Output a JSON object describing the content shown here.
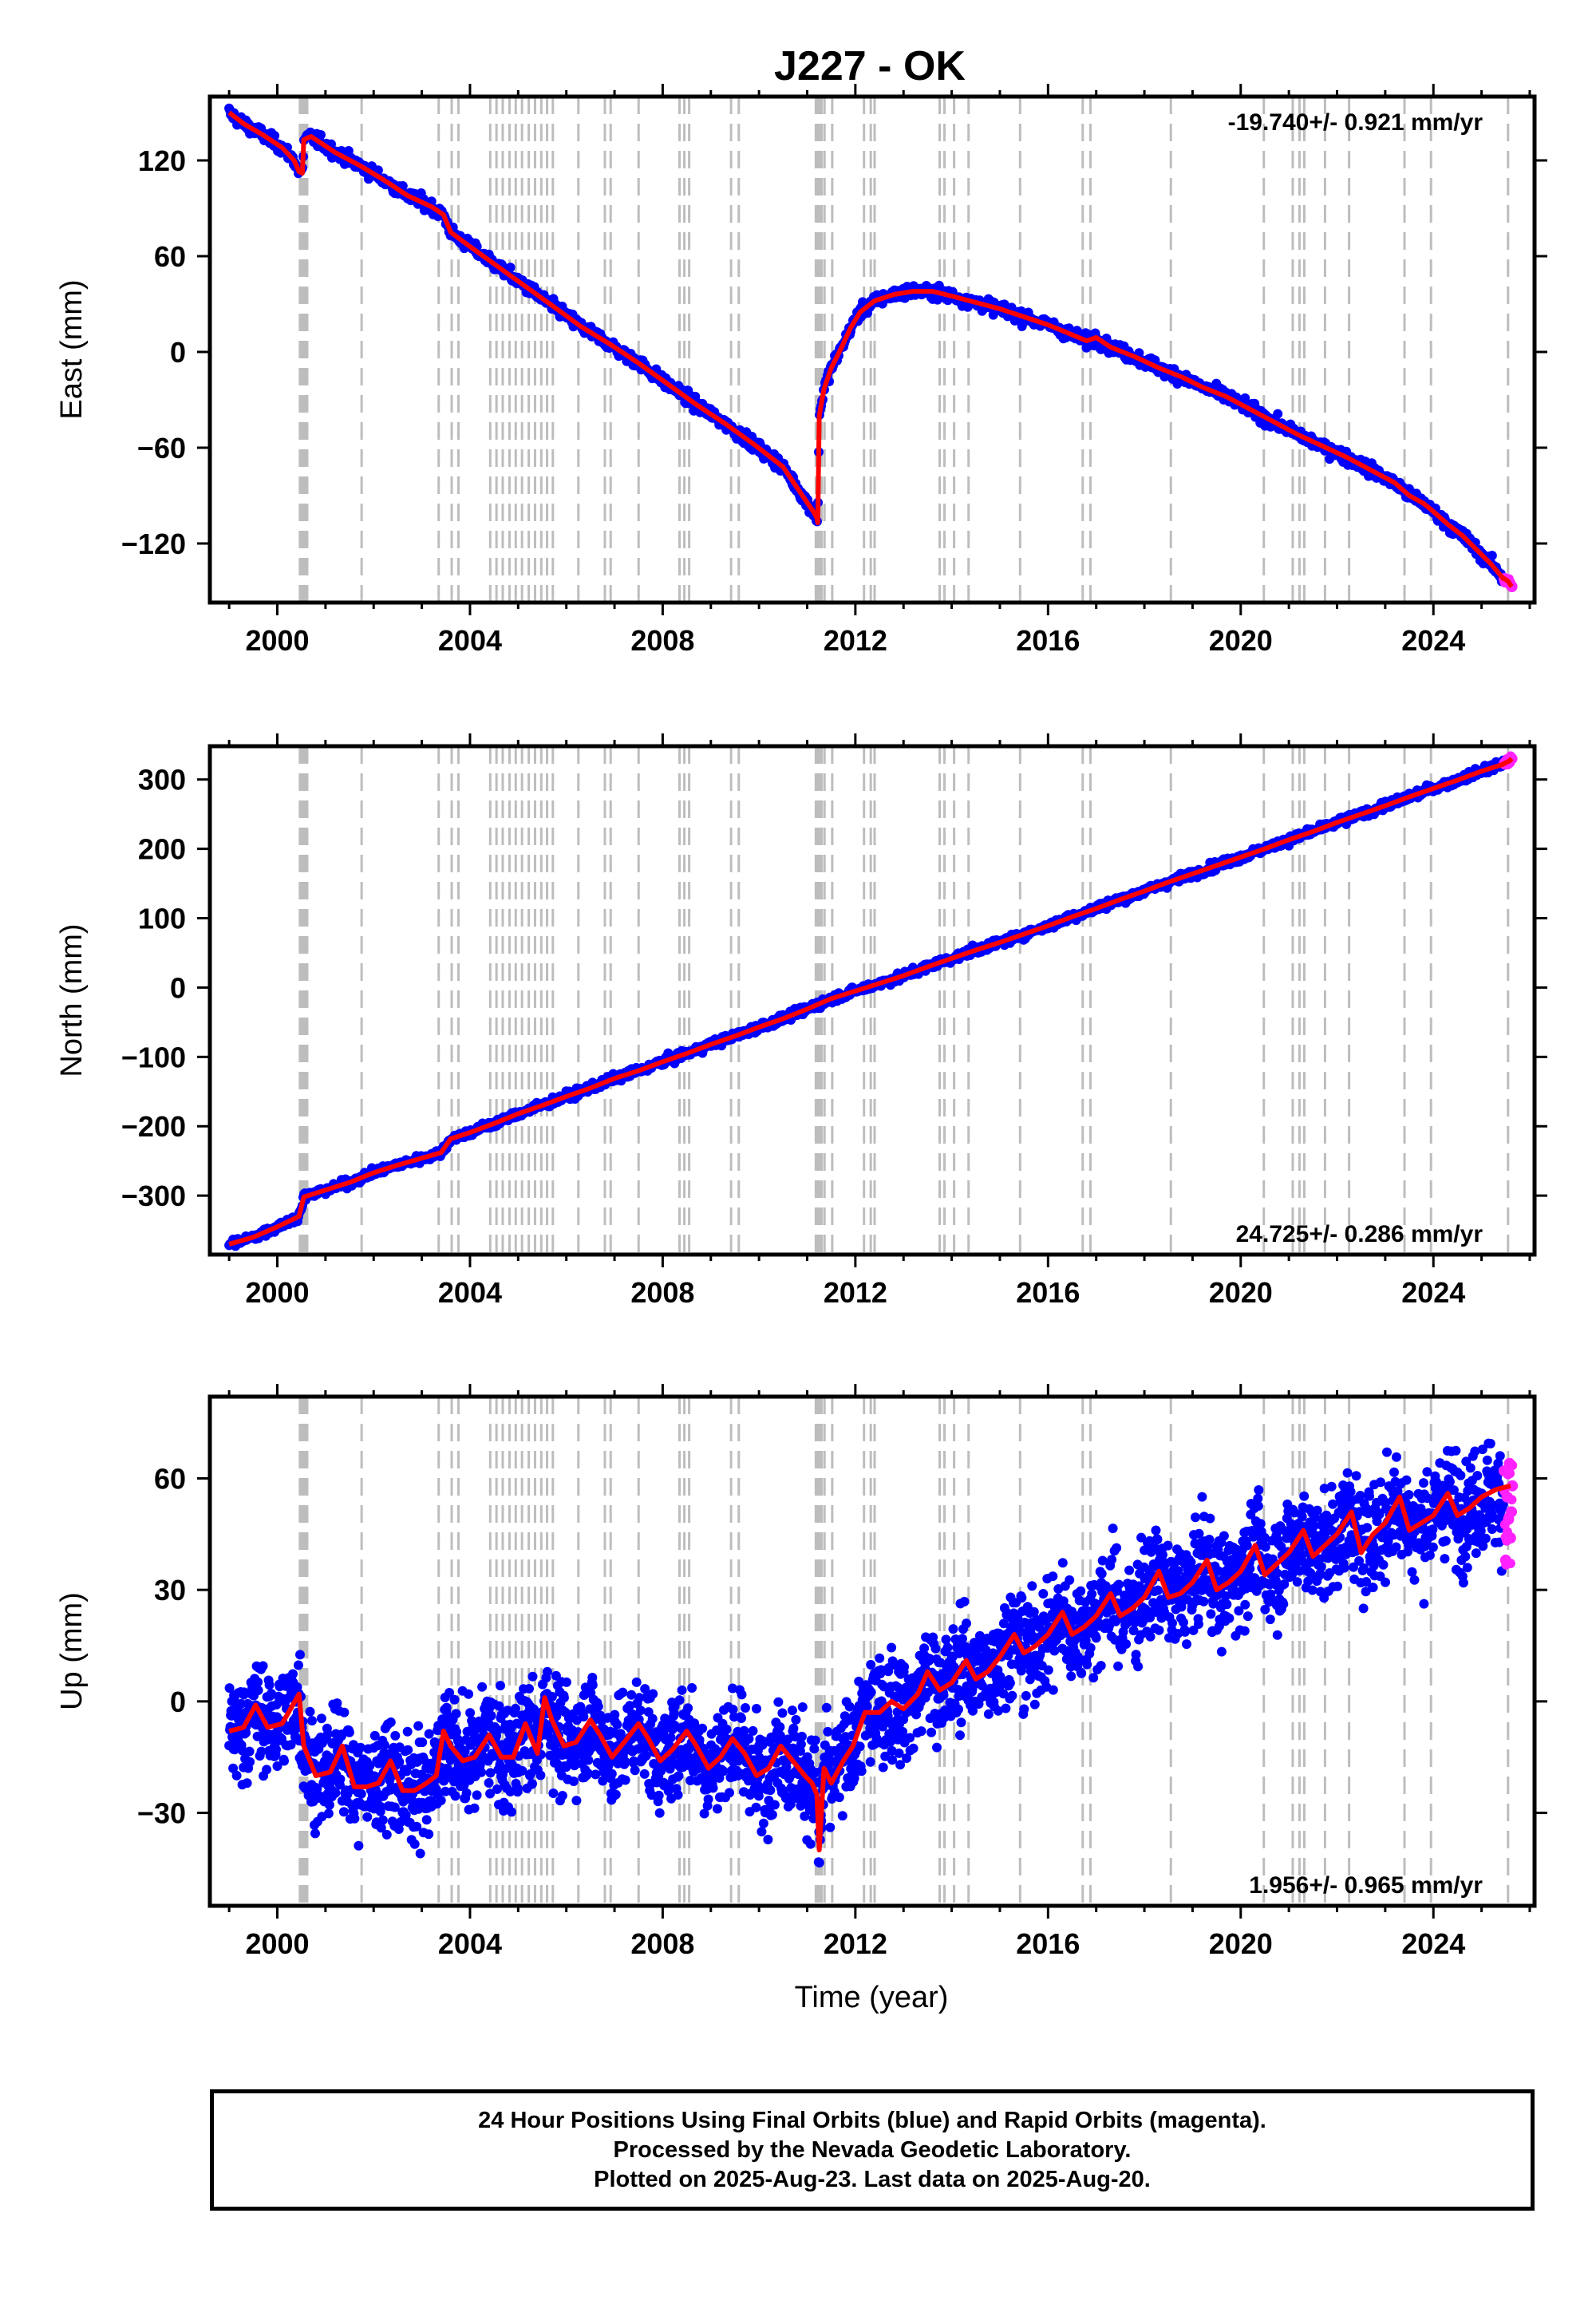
{
  "title": "J227 - OK",
  "xlabel": "Time (year)",
  "footer": {
    "line1": "24 Hour Positions Using Final Orbits (blue) and Rapid Orbits (magenta).",
    "line2": "Processed by the Nevada Geodetic Laboratory.",
    "line3": "Plotted on 2025-Aug-23. Last data on 2025-Aug-20."
  },
  "colors": {
    "final_orbits": "#0000ff",
    "rapid_orbits": "#ff22ff",
    "model": "#ff0000",
    "events": "#bdbdbd"
  },
  "chart_data": [
    {
      "type": "scatter",
      "component": "east",
      "ylabel": "East (mm)",
      "rate": "-19.740+/- 0.921 mm/yr",
      "rate_position": "top-right",
      "xlim": [
        1998.6,
        2026.1
      ],
      "ylim": [
        -157,
        160
      ],
      "x_ticks": [
        2000,
        2004,
        2008,
        2012,
        2016,
        2020,
        2024
      ],
      "y_ticks": [
        120,
        60,
        0,
        -60,
        -120
      ],
      "grid": false,
      "scatter_noise_mm": 2.0,
      "series": [
        {
          "name": "Final Orbits",
          "color": "#0000ff",
          "x": [
            1999.0,
            1999.3,
            1999.7,
            2000.1,
            2000.35,
            2000.45,
            2000.52,
            2000.55,
            2000.7,
            2001.2,
            2001.7,
            2002.2,
            2002.7,
            2003.2,
            2003.45,
            2003.6,
            2004.0,
            2004.6,
            2005.2,
            2005.8,
            2006.3,
            2006.9,
            2007.5,
            2008.1,
            2008.7,
            2009.3,
            2009.9,
            2010.5,
            2010.9,
            2011.15,
            2011.2,
            2011.22,
            2011.25,
            2011.35,
            2011.5,
            2011.7,
            2011.9,
            2012.1,
            2012.4,
            2012.8,
            2013.2,
            2013.6,
            2014.0,
            2014.5,
            2015.0,
            2015.5,
            2016.0,
            2016.4,
            2016.8,
            2017.0,
            2017.3,
            2017.8,
            2018.3,
            2018.8,
            2019.2,
            2019.7,
            2020.2,
            2020.7,
            2021.2,
            2021.7,
            2022.2,
            2022.7,
            2023.2,
            2023.5,
            2023.8,
            2024.0,
            2024.3,
            2024.6,
            2024.9,
            2025.2,
            2025.45
          ],
          "y": [
            150,
            143,
            136,
            128,
            120,
            113,
            112,
            133,
            135,
            125,
            117,
            108,
            98,
            91,
            86,
            75,
            66,
            53,
            40,
            27,
            16,
            5,
            -7,
            -20,
            -33,
            -45,
            -58,
            -72,
            -90,
            -101,
            -104,
            -107,
            -40,
            -23,
            -10,
            2,
            15,
            25,
            32,
            36,
            38,
            38,
            35,
            31,
            27,
            22,
            17,
            12,
            7,
            9,
            3,
            -3,
            -10,
            -16,
            -22,
            -28,
            -36,
            -44,
            -52,
            -59,
            -66,
            -74,
            -82,
            -90,
            -95,
            -100,
            -108,
            -115,
            -124,
            -133,
            -142
          ]
        },
        {
          "name": "Rapid Orbits",
          "color": "#ff22ff",
          "x": [
            2025.47,
            2025.52,
            2025.56,
            2025.6,
            2025.63
          ],
          "y": [
            -142,
            -143,
            -144,
            -146,
            -147
          ]
        }
      ],
      "events_x": [
        2000.47,
        2000.5,
        2000.54,
        2000.58,
        2000.62,
        2001.75,
        2003.35,
        2003.62,
        2003.76,
        2004.42,
        2004.55,
        2004.68,
        2004.82,
        2004.95,
        2005.08,
        2005.22,
        2005.35,
        2005.48,
        2005.6,
        2005.72,
        2006.25,
        2006.8,
        2006.92,
        2007.5,
        2008.35,
        2008.45,
        2008.55,
        2009.42,
        2009.58,
        2011.18,
        2011.22,
        2011.26,
        2011.3,
        2011.36,
        2011.52,
        2012.18,
        2012.32,
        2012.4,
        2013.75,
        2013.85,
        2014.05,
        2014.35,
        2015.42,
        2016.72,
        2016.88,
        2018.55,
        2020.48,
        2021.08,
        2021.22,
        2021.32,
        2021.75,
        2022.25,
        2023.4,
        2023.95,
        2025.55
      ]
    },
    {
      "type": "scatter",
      "component": "north",
      "ylabel": "North (mm)",
      "rate": "24.725+/- 0.286 mm/yr",
      "rate_position": "bottom-right",
      "xlim": [
        1998.6,
        2026.1
      ],
      "ylim": [
        -385,
        348
      ],
      "x_ticks": [
        2000,
        2004,
        2008,
        2012,
        2016,
        2020,
        2024
      ],
      "y_ticks": [
        300,
        200,
        100,
        0,
        -100,
        -200,
        -300
      ],
      "grid": false,
      "scatter_noise_mm": 3.0,
      "series": [
        {
          "name": "Final Orbits",
          "color": "#0000ff",
          "x": [
            1999.0,
            1999.5,
            2000.0,
            2000.45,
            2000.55,
            2001.0,
            2001.5,
            2002.0,
            2002.5,
            2003.0,
            2003.4,
            2003.6,
            2004.0,
            2004.5,
            2005.0,
            2005.5,
            2006.0,
            2006.5,
            2007.0,
            2007.5,
            2008.0,
            2008.5,
            2009.0,
            2009.5,
            2010.0,
            2010.5,
            2011.0,
            2011.5,
            2012.0,
            2012.5,
            2013.0,
            2013.5,
            2014.0,
            2014.5,
            2015.0,
            2015.5,
            2016.0,
            2016.5,
            2017.0,
            2017.5,
            2018.0,
            2018.5,
            2019.0,
            2019.5,
            2020.0,
            2020.5,
            2021.0,
            2021.5,
            2022.0,
            2022.5,
            2023.0,
            2023.5,
            2024.0,
            2024.5,
            2025.0,
            2025.45
          ],
          "y": [
            -370,
            -360,
            -345,
            -330,
            -302,
            -292,
            -281,
            -267,
            -256,
            -246,
            -238,
            -218,
            -209,
            -196,
            -182,
            -170,
            -157,
            -145,
            -131,
            -120,
            -107,
            -95,
            -82,
            -70,
            -57,
            -45,
            -31,
            -16,
            -5,
            6,
            17,
            30,
            42,
            54,
            65,
            77,
            89,
            102,
            114,
            127,
            139,
            152,
            164,
            176,
            188,
            200,
            213,
            225,
            238,
            250,
            262,
            275,
            287,
            299,
            312,
            322
          ]
        },
        {
          "name": "Rapid Orbits",
          "color": "#ff22ff",
          "x": [
            2025.47,
            2025.52,
            2025.56,
            2025.6,
            2025.63
          ],
          "y": [
            323,
            325,
            326,
            328,
            330
          ]
        }
      ],
      "events_x": [
        2000.47,
        2000.5,
        2000.54,
        2000.58,
        2000.62,
        2001.75,
        2003.35,
        2003.62,
        2003.76,
        2004.42,
        2004.55,
        2004.68,
        2004.82,
        2004.95,
        2005.08,
        2005.22,
        2005.35,
        2005.48,
        2005.6,
        2005.72,
        2006.25,
        2006.8,
        2006.92,
        2007.5,
        2008.35,
        2008.45,
        2008.55,
        2009.42,
        2009.58,
        2011.18,
        2011.22,
        2011.26,
        2011.3,
        2011.36,
        2011.52,
        2012.18,
        2012.32,
        2012.4,
        2013.75,
        2013.85,
        2014.05,
        2014.35,
        2015.42,
        2016.72,
        2016.88,
        2018.55,
        2020.48,
        2021.08,
        2021.22,
        2021.32,
        2021.75,
        2022.25,
        2023.4,
        2023.95,
        2025.55
      ]
    },
    {
      "type": "scatter",
      "component": "up",
      "ylabel": "Up (mm)",
      "rate": "1.956+/- 0.965 mm/yr",
      "rate_position": "bottom-right",
      "xlim": [
        1998.6,
        2026.1
      ],
      "ylim": [
        -55,
        82
      ],
      "x_ticks": [
        2000,
        2004,
        2008,
        2012,
        2016,
        2020,
        2024
      ],
      "y_ticks": [
        60,
        30,
        0,
        -30
      ],
      "grid": false,
      "scatter_noise_mm": 7.0,
      "series": [
        {
          "name": "Final Orbits",
          "color": "#0000ff",
          "x": [
            1999.0,
            1999.3,
            1999.55,
            1999.8,
            2000.1,
            2000.45,
            2000.55,
            2000.8,
            2001.1,
            2001.35,
            2001.6,
            2001.85,
            2002.1,
            2002.35,
            2002.6,
            2002.85,
            2003.1,
            2003.3,
            2003.45,
            2003.6,
            2003.85,
            2004.1,
            2004.4,
            2004.65,
            2004.9,
            2005.15,
            2005.4,
            2005.55,
            2005.7,
            2005.95,
            2006.2,
            2006.5,
            2006.7,
            2006.95,
            2007.2,
            2007.5,
            2007.7,
            2007.95,
            2008.2,
            2008.5,
            2008.7,
            2008.95,
            2009.2,
            2009.45,
            2009.7,
            2009.95,
            2010.2,
            2010.45,
            2010.7,
            2010.95,
            2011.1,
            2011.2,
            2011.25,
            2011.35,
            2011.5,
            2011.75,
            2011.95,
            2012.2,
            2012.5,
            2012.75,
            2013.0,
            2013.3,
            2013.5,
            2013.75,
            2014.0,
            2014.3,
            2014.5,
            2014.75,
            2015.0,
            2015.3,
            2015.5,
            2015.75,
            2016.0,
            2016.3,
            2016.5,
            2016.75,
            2017.0,
            2017.3,
            2017.5,
            2017.75,
            2018.0,
            2018.3,
            2018.5,
            2018.75,
            2019.0,
            2019.3,
            2019.5,
            2019.75,
            2020.0,
            2020.3,
            2020.5,
            2020.75,
            2021.0,
            2021.3,
            2021.5,
            2021.75,
            2022.0,
            2022.3,
            2022.5,
            2022.75,
            2023.0,
            2023.3,
            2023.5,
            2023.75,
            2024.0,
            2024.3,
            2024.5,
            2024.75,
            2025.0,
            2025.3,
            2025.45
          ],
          "y": [
            -8,
            -7,
            -1,
            -7,
            -6,
            2,
            -12,
            -20,
            -19,
            -12,
            -23,
            -23,
            -22,
            -16,
            -24,
            -24,
            -22,
            -20,
            -8,
            -12,
            -16,
            -15,
            -9,
            -15,
            -15,
            -6,
            -14,
            1,
            -5,
            -12,
            -11,
            -5,
            -9,
            -15,
            -11,
            -6,
            -10,
            -16,
            -13,
            -8,
            -12,
            -18,
            -15,
            -10,
            -14,
            -20,
            -18,
            -12,
            -16,
            -20,
            -22,
            -25,
            -40,
            -18,
            -22,
            -16,
            -12,
            -3,
            -3,
            0,
            -2,
            2,
            8,
            3,
            5,
            11,
            6,
            8,
            12,
            18,
            13,
            15,
            18,
            24,
            18,
            20,
            23,
            29,
            23,
            25,
            28,
            35,
            28,
            29,
            32,
            38,
            30,
            32,
            35,
            42,
            34,
            37,
            40,
            46,
            39,
            42,
            45,
            51,
            40,
            45,
            48,
            55,
            46,
            48,
            50,
            56,
            50,
            52,
            55,
            57,
            53
          ]
        },
        {
          "name": "Rapid Orbits",
          "color": "#ff22ff",
          "x": [
            2025.47,
            2025.5,
            2025.53,
            2025.56,
            2025.58,
            2025.6,
            2025.62,
            2025.64
          ],
          "y": [
            62,
            38,
            55,
            49,
            64,
            44,
            51,
            58
          ]
        }
      ],
      "model_line": {
        "x": [
          1999.0,
          1999.3,
          1999.55,
          1999.8,
          2000.1,
          2000.45,
          2000.55,
          2000.8,
          2001.1,
          2001.35,
          2001.6,
          2001.85,
          2002.1,
          2002.35,
          2002.6,
          2002.85,
          2003.1,
          2003.3,
          2003.45,
          2003.6,
          2003.85,
          2004.1,
          2004.4,
          2004.65,
          2004.9,
          2005.15,
          2005.4,
          2005.55,
          2005.7,
          2005.95,
          2006.2,
          2006.5,
          2006.7,
          2006.95,
          2007.2,
          2007.5,
          2007.7,
          2007.95,
          2008.2,
          2008.5,
          2008.7,
          2008.95,
          2009.2,
          2009.45,
          2009.7,
          2009.95,
          2010.2,
          2010.45,
          2010.7,
          2010.95,
          2011.1,
          2011.2,
          2011.25,
          2011.35,
          2011.5,
          2011.75,
          2011.95,
          2012.2,
          2012.5,
          2012.75,
          2013.0,
          2013.3,
          2013.5,
          2013.75,
          2014.0,
          2014.3,
          2014.5,
          2014.75,
          2015.0,
          2015.3,
          2015.5,
          2015.75,
          2016.0,
          2016.3,
          2016.5,
          2016.75,
          2017.0,
          2017.3,
          2017.5,
          2017.75,
          2018.0,
          2018.3,
          2018.5,
          2018.75,
          2019.0,
          2019.3,
          2019.5,
          2019.75,
          2020.0,
          2020.3,
          2020.5,
          2020.75,
          2021.0,
          2021.3,
          2021.5,
          2021.75,
          2022.0,
          2022.3,
          2022.5,
          2022.75,
          2023.0,
          2023.3,
          2023.5,
          2023.75,
          2024.0,
          2024.3,
          2024.5,
          2024.75,
          2025.0,
          2025.3,
          2025.6
        ],
        "y": [
          -8,
          -7,
          -1,
          -7,
          -6,
          2,
          -12,
          -20,
          -19,
          -12,
          -23,
          -23,
          -22,
          -16,
          -24,
          -24,
          -22,
          -20,
          -8,
          -12,
          -16,
          -15,
          -9,
          -15,
          -15,
          -6,
          -14,
          1,
          -5,
          -12,
          -11,
          -5,
          -9,
          -15,
          -11,
          -6,
          -10,
          -16,
          -13,
          -8,
          -12,
          -18,
          -15,
          -10,
          -14,
          -20,
          -18,
          -12,
          -16,
          -20,
          -22,
          -25,
          -40,
          -18,
          -22,
          -16,
          -12,
          -3,
          -3,
          0,
          -2,
          2,
          8,
          3,
          5,
          11,
          6,
          8,
          12,
          18,
          13,
          15,
          18,
          24,
          18,
          20,
          23,
          29,
          23,
          25,
          28,
          35,
          28,
          29,
          32,
          38,
          30,
          32,
          35,
          42,
          34,
          37,
          40,
          46,
          39,
          42,
          45,
          51,
          40,
          45,
          48,
          55,
          46,
          48,
          50,
          56,
          50,
          52,
          55,
          57,
          58
        ]
      },
      "events_x": [
        2000.47,
        2000.5,
        2000.54,
        2000.58,
        2000.62,
        2001.75,
        2003.35,
        2003.62,
        2003.76,
        2004.42,
        2004.55,
        2004.68,
        2004.82,
        2004.95,
        2005.08,
        2005.22,
        2005.35,
        2005.48,
        2005.6,
        2005.72,
        2006.25,
        2006.8,
        2006.92,
        2007.5,
        2008.35,
        2008.45,
        2008.55,
        2009.42,
        2009.58,
        2011.18,
        2011.22,
        2011.26,
        2011.3,
        2011.36,
        2011.52,
        2012.18,
        2012.32,
        2012.4,
        2013.75,
        2013.85,
        2014.05,
        2014.35,
        2015.42,
        2016.72,
        2016.88,
        2018.55,
        2020.48,
        2021.08,
        2021.22,
        2021.32,
        2021.75,
        2022.25,
        2023.4,
        2023.95,
        2025.55
      ]
    }
  ]
}
